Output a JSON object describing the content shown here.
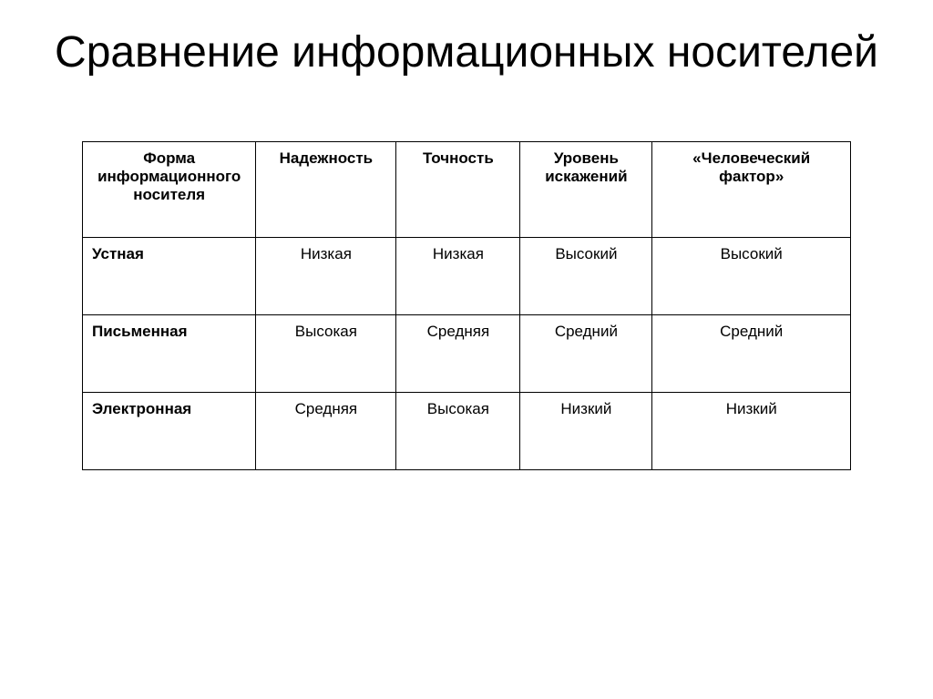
{
  "title": "Сравнение информационных носителей",
  "table": {
    "columns": [
      "Форма информационного носителя",
      "Надежность",
      "Точность",
      "Уровень искажений",
      "«Человеческий фактор»"
    ],
    "rows": [
      {
        "label": "Устная",
        "cells": [
          "Низкая",
          "Низкая",
          "Высокий",
          "Высокий"
        ]
      },
      {
        "label": "Письменная",
        "cells": [
          "Высокая",
          "Средняя",
          "Средний",
          "Средний"
        ]
      },
      {
        "label": "Электронная",
        "cells": [
          "Средняя",
          "Высокая",
          "Низкий",
          "Низкий"
        ]
      }
    ],
    "column_widths_pct": [
      21,
      17,
      15,
      16,
      24
    ],
    "border_color": "#000000",
    "background_color": "#ffffff",
    "header_fontsize": 17,
    "cell_fontsize": 17,
    "title_fontsize": 48
  }
}
